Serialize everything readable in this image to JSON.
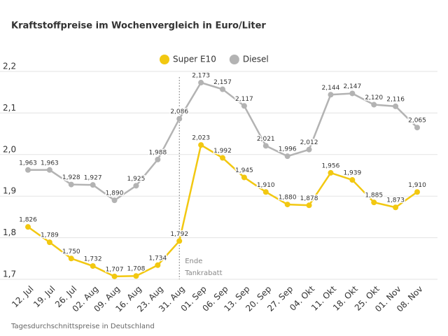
{
  "chart_data": {
    "type": "line",
    "title": "Kraftstoffpreise im Wochenvergleich in Euro/Liter",
    "footer": "Tagesdurchschnittspreise in Deutschland",
    "annotation": [
      "Ende",
      "Tankrabatt"
    ],
    "categories": [
      "12. Jul",
      "19. Jul",
      "26. Jul",
      "02. Aug",
      "09. Aug",
      "16. Aug",
      "23. Aug",
      "31. Aug",
      "01. Sep",
      "06. Sep",
      "13. Sep",
      "20. Sep",
      "27. Sep",
      "04. Okt",
      "11. Okt",
      "18. Okt",
      "25. Okt",
      "01. Nov",
      "08. Nov"
    ],
    "series": [
      {
        "name": "Super E10",
        "color": "#f2c811",
        "values": [
          1.826,
          1.789,
          1.75,
          1.732,
          1.707,
          1.708,
          1.734,
          1.792,
          2.023,
          1.992,
          1.945,
          1.91,
          1.88,
          1.878,
          1.956,
          1.939,
          1.885,
          1.873,
          1.91
        ],
        "value_labels": [
          "1,826",
          "1,789",
          "1,750",
          "1,732",
          "1,707",
          "1,708",
          "1,734",
          "1,792",
          "2,023",
          "1,992",
          "1,945",
          "1,910",
          "1,880",
          "1,878",
          "1,956",
          "1,939",
          "1,885",
          "1,873",
          "1,910"
        ]
      },
      {
        "name": "Diesel",
        "color": "#b3b3b3",
        "values": [
          1.963,
          1.963,
          1.928,
          1.927,
          1.89,
          1.925,
          1.988,
          2.086,
          2.173,
          2.157,
          2.117,
          2.021,
          1.996,
          2.012,
          2.144,
          2.147,
          2.12,
          2.116,
          2.065
        ],
        "value_labels": [
          "1,963",
          "1,963",
          "1,928",
          "1,927",
          "1,890",
          "1,925",
          "1,988",
          "2,086",
          "2,173",
          "2,157",
          "2,117",
          "2,021",
          "1,996",
          "2,012",
          "2,144",
          "2,147",
          "2,120",
          "2,116",
          "2,065"
        ]
      }
    ],
    "ylim": [
      1.7,
      2.2
    ],
    "yticks": [
      {
        "value": 1.7,
        "label": "1,7"
      },
      {
        "value": 1.8,
        "label": "1,8"
      },
      {
        "value": 1.9,
        "label": "1,9"
      },
      {
        "value": 2.0,
        "label": "2,0"
      },
      {
        "value": 2.1,
        "label": "2,1"
      },
      {
        "value": 2.2,
        "label": "2,2"
      }
    ],
    "grid": true
  }
}
